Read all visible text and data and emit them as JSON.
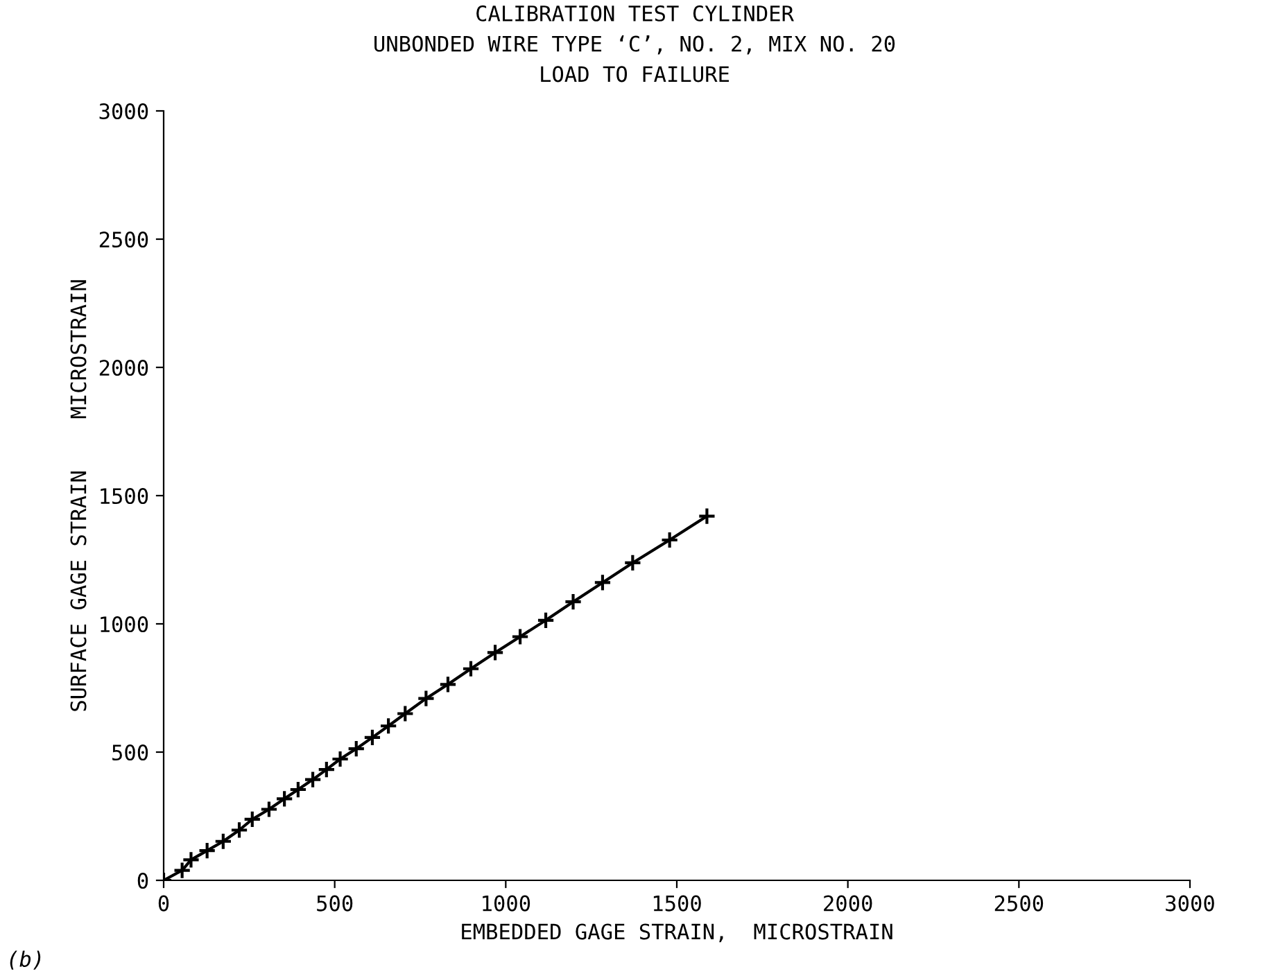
{
  "chart_data": {
    "type": "line",
    "title": "CALIBRATION TEST CYLINDER\nUNBONDED WIRE TYPE ‘C’, NO. 2, MIX NO. 20\nLOAD TO FAILURE",
    "xlabel": "EMBEDDED GAGE STRAIN,  MICROSTRAIN",
    "ylabel": "SURFACE GAGE STRAIN    MICROSTRAIN",
    "annotations": [
      "(b)"
    ],
    "series": [
      {
        "color": "#000000",
        "x": [
          0,
          54,
          80,
          127,
          174,
          221,
          259,
          308,
          353,
          393,
          436,
          476,
          516,
          563,
          610,
          657,
          706,
          767,
          831,
          898,
          969,
          1042,
          1117,
          1197,
          1283,
          1371,
          1479,
          1588
        ],
        "values": [
          0,
          39,
          80,
          116,
          152,
          196,
          238,
          277,
          318,
          354,
          393,
          432,
          473,
          513,
          557,
          602,
          650,
          709,
          764,
          825,
          888,
          950,
          1014,
          1086,
          1161,
          1238,
          1327,
          1420
        ]
      }
    ],
    "xlim": [
      0,
      3000
    ],
    "ylim": [
      0,
      3000
    ],
    "xticks": [
      0,
      500,
      1000,
      1500,
      2000,
      2500,
      3000
    ],
    "yticks": [
      0,
      500,
      1000,
      1500,
      2000,
      2500,
      3000
    ],
    "grid": false,
    "legend": false,
    "marker": "cross",
    "line_style": "solid"
  }
}
